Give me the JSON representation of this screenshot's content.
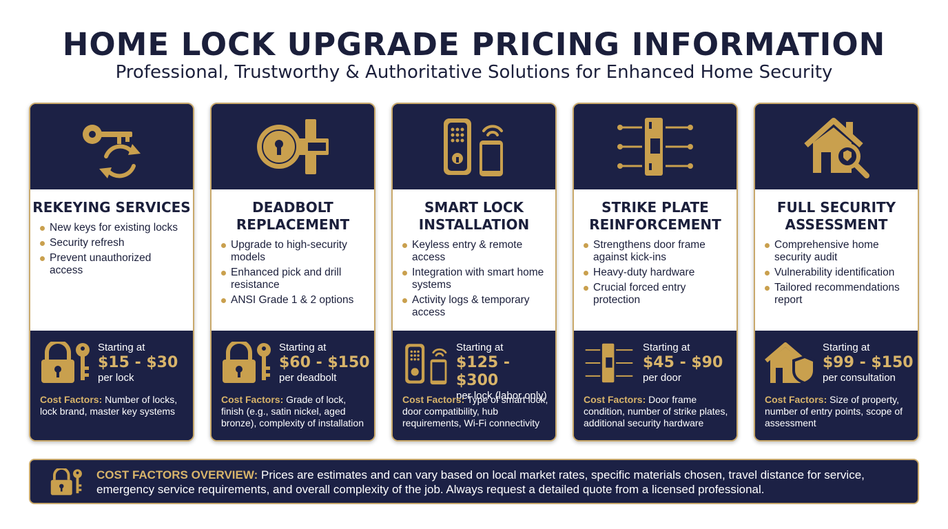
{
  "header": {
    "title": "HOME LOCK UPGRADE PRICING INFORMATION",
    "subtitle": "Professional, Trustworthy & Authoritative Solutions for Enhanced Home Security"
  },
  "colors": {
    "navy": "#1c2145",
    "gold": "#d8b46a",
    "border": "#c9a96b"
  },
  "cards": [
    {
      "icon": "key-rotate-icon",
      "title": "REKEYING SERVICES",
      "bullets": [
        "New keys for existing locks",
        "Security refresh",
        "Prevent unauthorized access"
      ],
      "price_icon": "padlock-key-icon",
      "starting": "Starting at",
      "price": "$15 - $30",
      "unit": "per lock",
      "factors_label": "Cost Factors:",
      "factors": "Number of locks, lock brand, master key systems"
    },
    {
      "icon": "deadbolt-icon",
      "title": "DEADBOLT REPLACEMENT",
      "bullets": [
        "Upgrade to high-security models",
        "Enhanced pick and drill resistance",
        "ANSI Grade 1 & 2 options"
      ],
      "price_icon": "padlock-key-icon",
      "starting": "Starting at",
      "price": "$60 - $150",
      "unit": "per deadbolt",
      "factors_label": "Cost Factors:",
      "factors": "Grade of lock, finish (e.g., satin nickel, aged bronze), complexity of installation"
    },
    {
      "icon": "smart-lock-phone-icon",
      "title": "SMART LOCK INSTALLATION",
      "bullets": [
        "Keyless entry & remote access",
        "Integration with smart home systems",
        "Activity logs & temporary access"
      ],
      "price_icon": "smart-lock-phone-icon",
      "starting": "Starting at",
      "price": "$125 - $300",
      "unit": "per lock (labor only)",
      "factors_label": "Cost Factors:",
      "factors": "Type of smart lock, door compatibility, hub requirements, Wi-Fi connectivity"
    },
    {
      "icon": "strike-plate-icon",
      "title": "STRIKE PLATE REINFORCEMENT",
      "bullets": [
        "Strengthens door frame against kick-ins",
        "Heavy-duty hardware",
        "Crucial forced entry protection"
      ],
      "price_icon": "strike-plate-icon",
      "starting": "Starting at",
      "price": "$45 - $90",
      "unit": "per door",
      "factors_label": "Cost Factors:",
      "factors": "Door frame condition, number of strike plates, additional security hardware"
    },
    {
      "icon": "house-magnifier-icon",
      "title": "FULL SECURITY ASSESSMENT",
      "bullets": [
        "Comprehensive home security audit",
        "Vulnerability identification",
        "Tailored recommendations report"
      ],
      "price_icon": "house-shield-icon",
      "starting": "Starting at",
      "price": "$99 - $150",
      "unit": "per consultation",
      "factors_label": "Cost Factors:",
      "factors": "Size of property, number of entry points, scope of assessment"
    }
  ],
  "overview": {
    "label": "COST FACTORS OVERVIEW:",
    "text": "Prices are estimates and can vary based on local market rates, specific materials chosen, travel distance for service, emergency service requirements, and overall complexity of the job. Always request a detailed quote from a licensed professional."
  }
}
